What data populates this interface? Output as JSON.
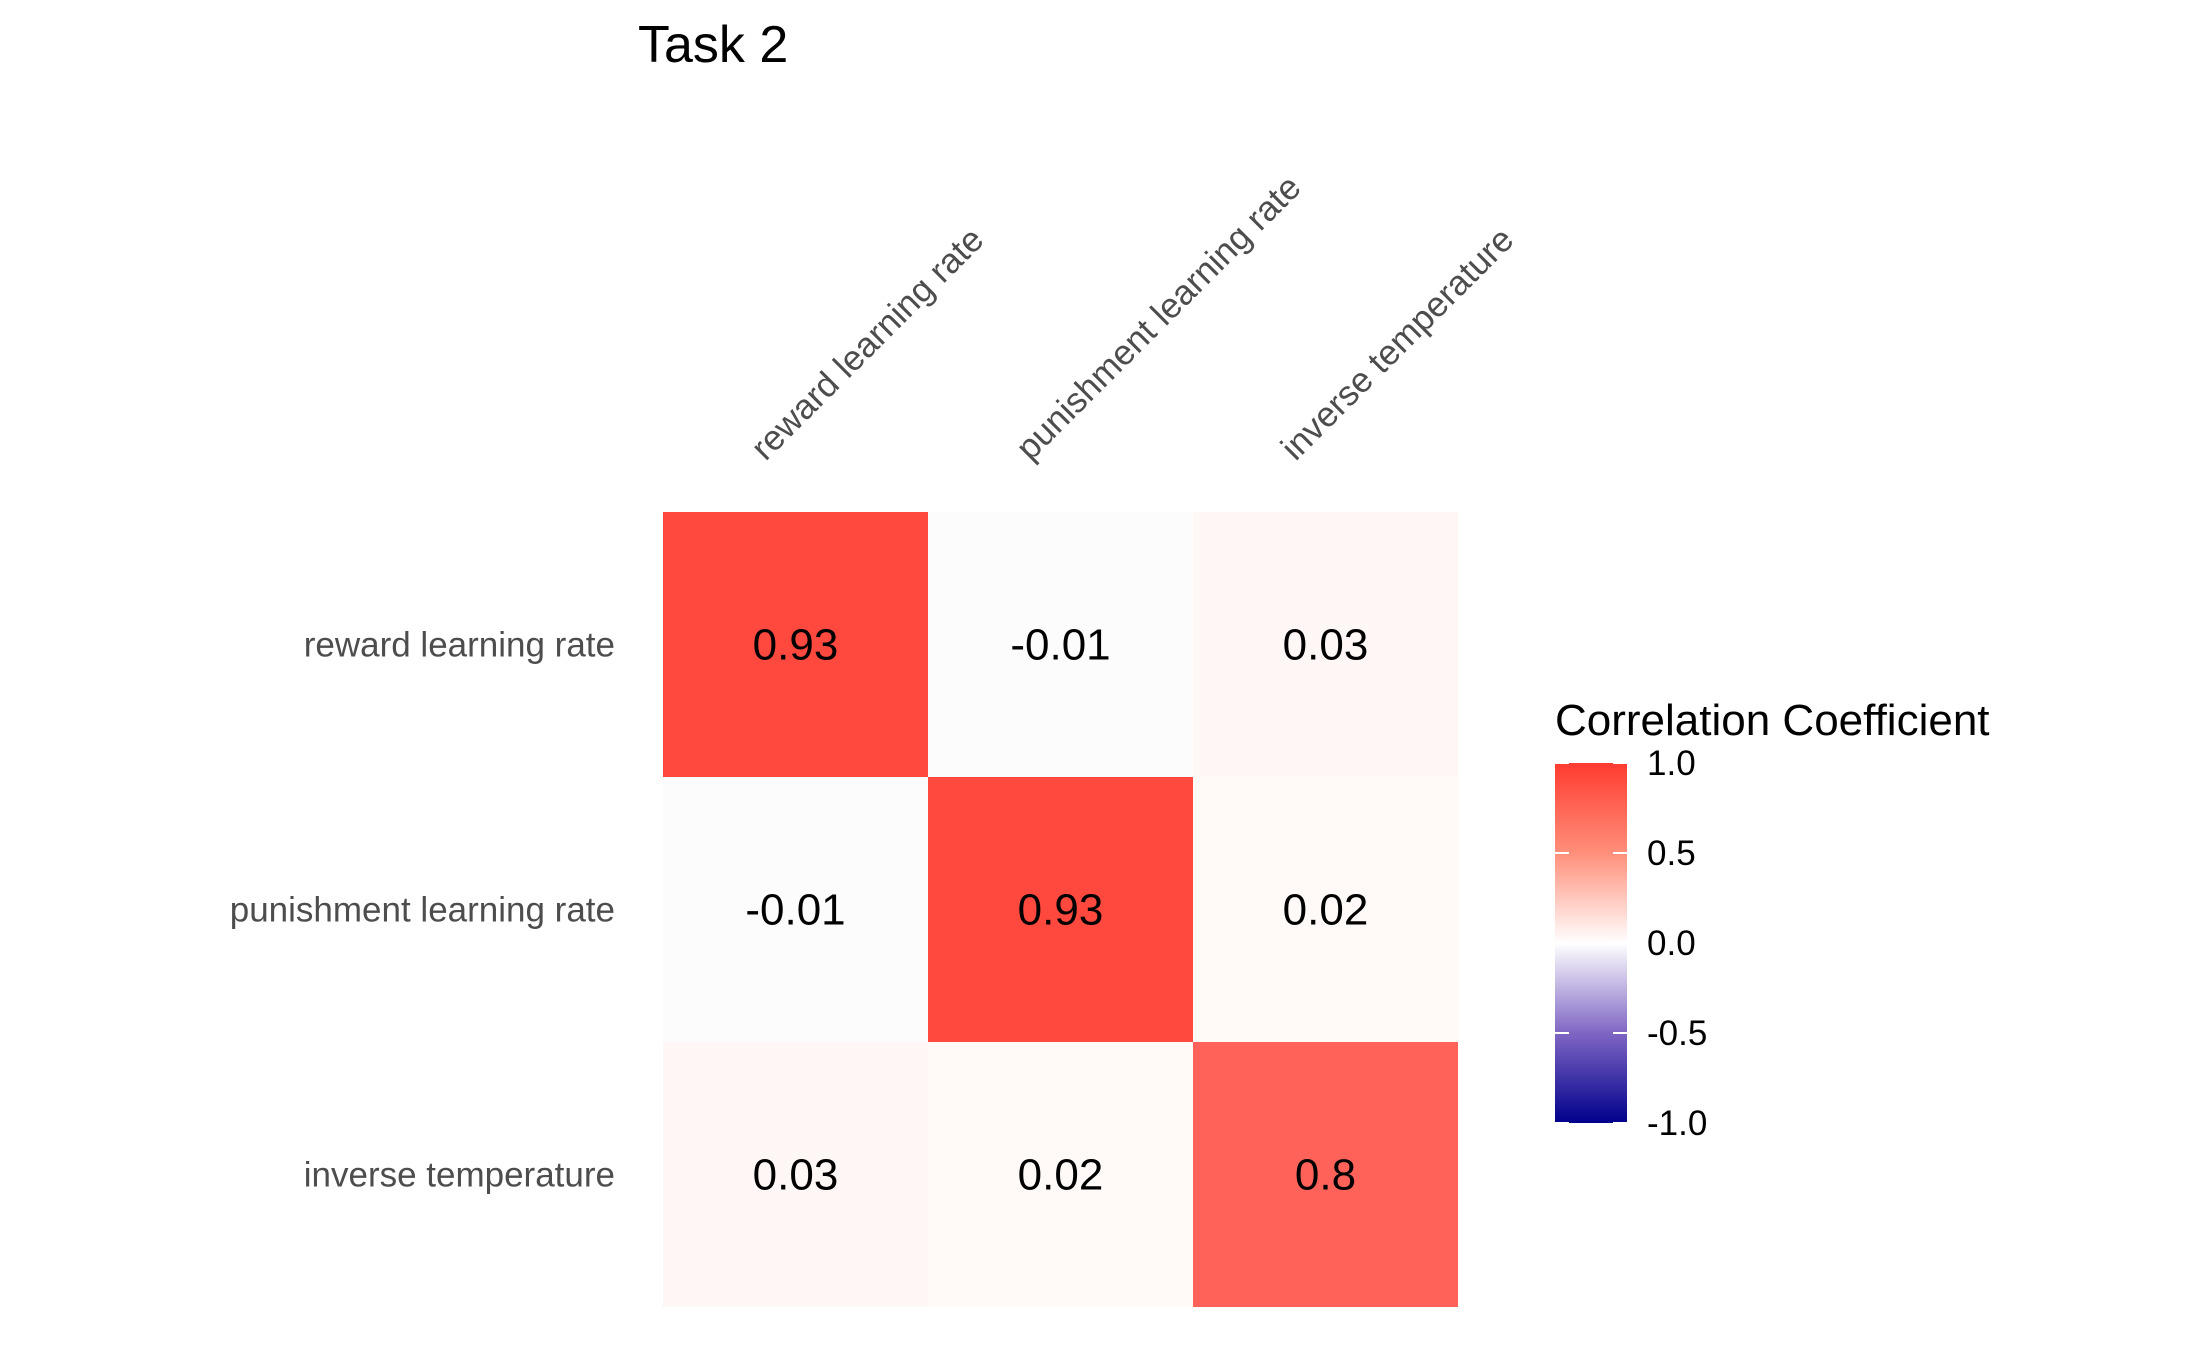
{
  "chart_data": {
    "type": "heatmap",
    "title": "Task 2",
    "x_categories": [
      "reward learning rate",
      "punishment learning rate",
      "inverse temperature"
    ],
    "y_categories": [
      "reward learning rate",
      "punishment learning rate",
      "inverse temperature"
    ],
    "values": [
      [
        0.93,
        -0.01,
        0.03
      ],
      [
        -0.01,
        0.93,
        0.02
      ],
      [
        0.03,
        0.02,
        0.8
      ]
    ],
    "value_labels": [
      [
        "0.93",
        "-0.01",
        "0.03"
      ],
      [
        "-0.01",
        "0.93",
        "0.02"
      ],
      [
        "0.03",
        "0.02",
        "0.8"
      ]
    ],
    "legend": {
      "title": "Correlation Coefficient",
      "ticks": [
        1.0,
        0.5,
        0.0,
        -0.5,
        -1.0
      ],
      "tick_labels": [
        "1.0",
        "0.5",
        "0.0",
        "-0.5",
        "-1.0"
      ],
      "range": [
        -1,
        1
      ],
      "colors": {
        "low": "#00008b",
        "mid": "#ffffff",
        "high": "#ff3b30"
      },
      "position": "right"
    }
  }
}
